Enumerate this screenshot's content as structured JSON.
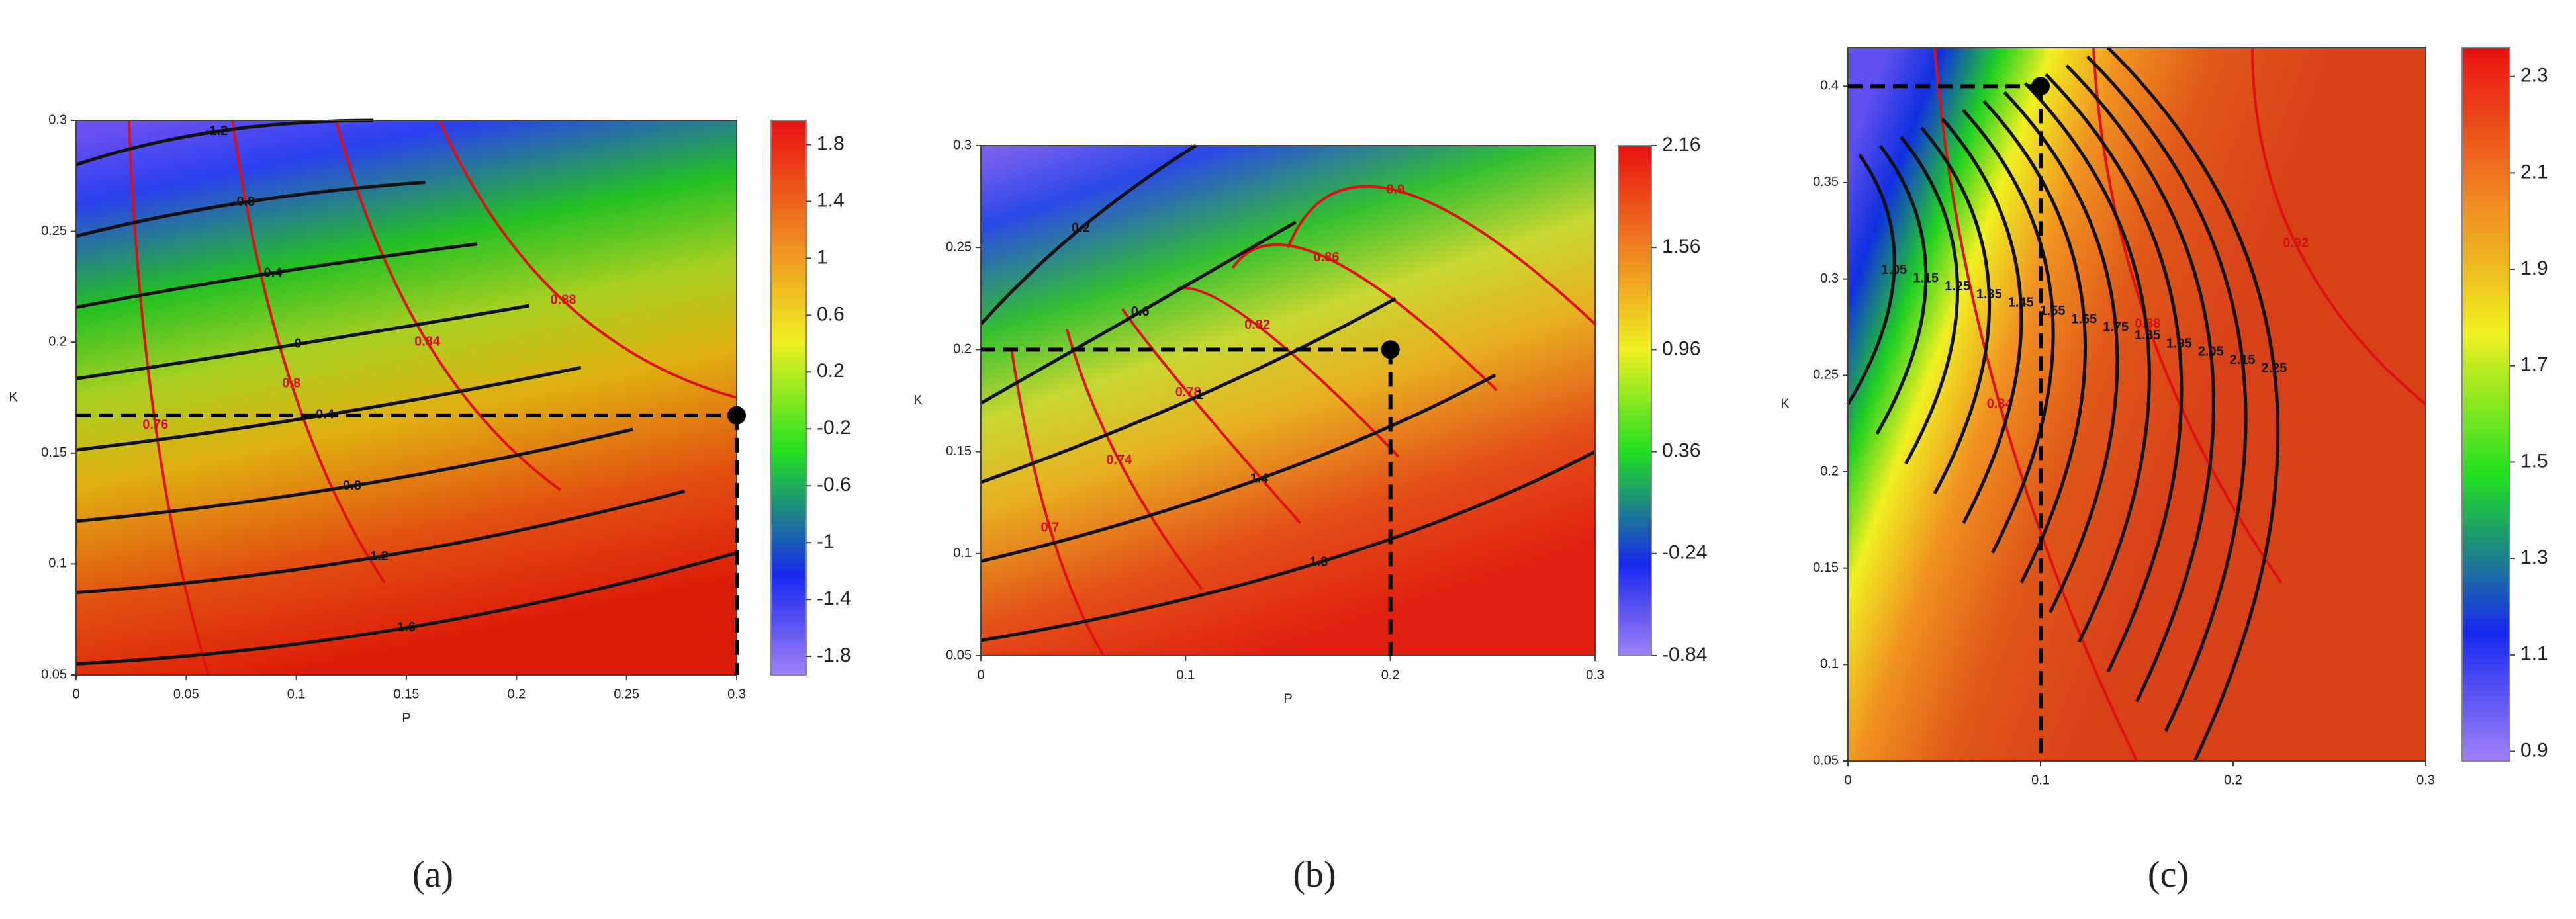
{
  "chart_data": [
    {
      "type": "contour",
      "panel_label": "(a)",
      "xlabel": "P",
      "ylabel": "K",
      "xlim": [
        0,
        0.3
      ],
      "xticks": [
        0,
        0.05,
        0.1,
        0.15,
        0.2,
        0.25,
        0.3
      ],
      "ylim": [
        0.05,
        0.3
      ],
      "yticks": [
        0.05,
        0.1,
        0.15,
        0.2,
        0.25,
        0.3
      ],
      "colorbar_lim": [
        -1.93,
        1.97
      ],
      "colorbar_ticks": [
        1.8,
        1.4,
        1,
        0.6,
        0.2,
        -0.2,
        -0.6,
        -1,
        -1.4,
        -1.8
      ],
      "marked_point": {
        "x": 0.3,
        "y": 0.167
      },
      "black_contours": [
        -1.2,
        -0.8,
        -0.4,
        0,
        0.4,
        0.8,
        1.2,
        1.6
      ],
      "red_contours": [
        0.76,
        0.8,
        0.84,
        0.88
      ]
    },
    {
      "type": "contour",
      "panel_label": "(b)",
      "xlabel": "P",
      "ylabel": "K",
      "xlim": [
        0,
        0.3
      ],
      "xticks": [
        0,
        0.1,
        0.2,
        0.3
      ],
      "ylim": [
        0.05,
        0.3
      ],
      "yticks": [
        0.05,
        0.1,
        0.15,
        0.2,
        0.25,
        0.3
      ],
      "colorbar_lim": [
        -0.84,
        2.16
      ],
      "colorbar_ticks": [
        2.16,
        1.56,
        0.96,
        0.36,
        -0.24,
        -0.84
      ],
      "marked_point": {
        "x": 0.2,
        "y": 0.2
      },
      "black_contours": [
        0.2,
        0.6,
        1,
        1.4,
        1.8
      ],
      "red_contours": [
        0.7,
        0.74,
        0.78,
        0.82,
        0.86,
        0.9
      ]
    },
    {
      "type": "contour",
      "panel_label": "(c)",
      "ylabel": "K",
      "xlim": [
        0,
        0.3
      ],
      "xticks": [
        0,
        0.1,
        0.2,
        0.3
      ],
      "ylim": [
        0.05,
        0.42
      ],
      "yticks": [
        0.05,
        0.1,
        0.15,
        0.2,
        0.25,
        0.3,
        0.35,
        0.4
      ],
      "colorbar_lim": [
        0.88,
        2.36
      ],
      "colorbar_ticks": [
        2.3,
        2.1,
        1.9,
        1.7,
        1.5,
        1.3,
        1.1,
        0.9
      ],
      "marked_point": {
        "x": 0.1,
        "y": 0.4
      },
      "black_contours": [
        1.05,
        1.15,
        1.25,
        1.35,
        1.45,
        1.55,
        1.65,
        1.75,
        1.85,
        1.95,
        2.05,
        2.15,
        2.25
      ],
      "red_contours": [
        0.84,
        0.88,
        0.92
      ]
    }
  ]
}
